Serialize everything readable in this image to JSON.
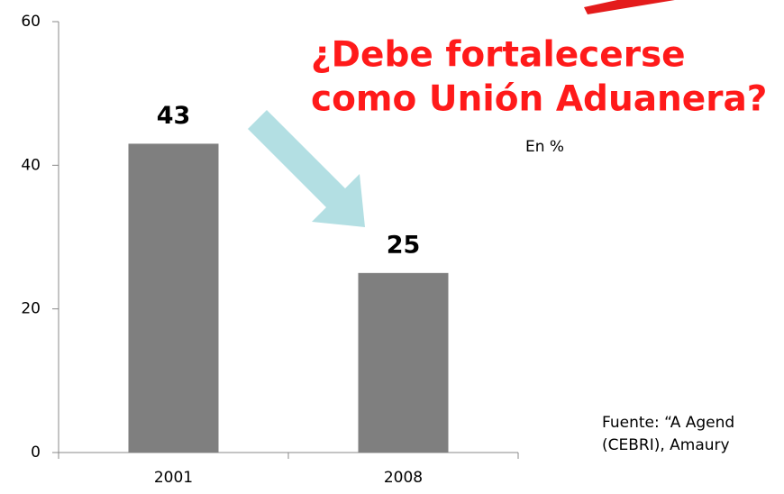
{
  "chart_data": {
    "type": "bar",
    "title": [
      "¿Debe fortalecerse",
      "como Unión Aduanera?"
    ],
    "subtitle": "En %",
    "source": [
      "Fuente: “A Agend",
      "(CEBRI), Amaury"
    ],
    "categories": [
      "2001",
      "2008"
    ],
    "values": [
      43,
      25
    ],
    "color": "#7f7f7f",
    "ylim": [
      0,
      60
    ],
    "yticks": [
      0,
      20,
      40,
      60
    ],
    "grid": false
  }
}
